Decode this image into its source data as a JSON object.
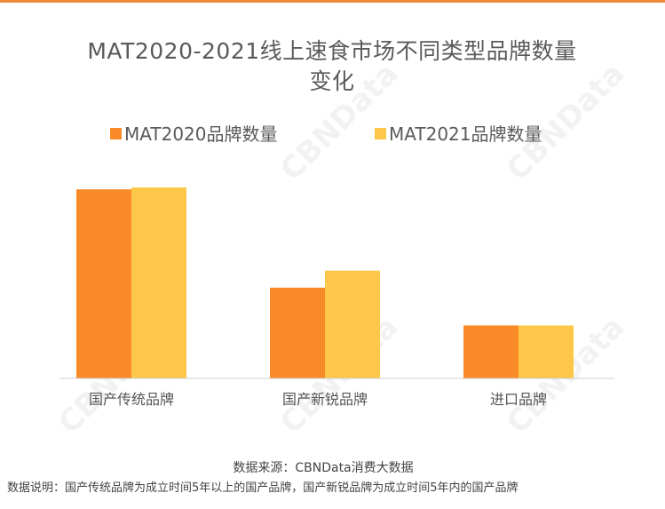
{
  "chart_data": {
    "type": "bar",
    "title_line1": "MAT2020-2021线上速食市场不同类型品牌数量",
    "title_line2": "变化",
    "categories": [
      "国产传统品牌",
      "国产新锐品牌",
      "进口品牌"
    ],
    "series": [
      {
        "name": "MAT2020品牌数量",
        "color": "#f98a28",
        "values": [
          100,
          48,
          28
        ]
      },
      {
        "name": "MAT2021品牌数量",
        "color": "#fdc84a",
        "values": [
          101,
          57,
          28
        ]
      }
    ],
    "ylim": [
      0,
      101
    ],
    "grid": false,
    "legend": "top",
    "watermark": "CBNData"
  },
  "footer": {
    "source": "数据来源：CBNData消费大数据",
    "note": "数据说明：国产传统品牌为成立时间5年以上的国产品牌，国产新锐品牌为成立时间5年内的国产品牌"
  }
}
